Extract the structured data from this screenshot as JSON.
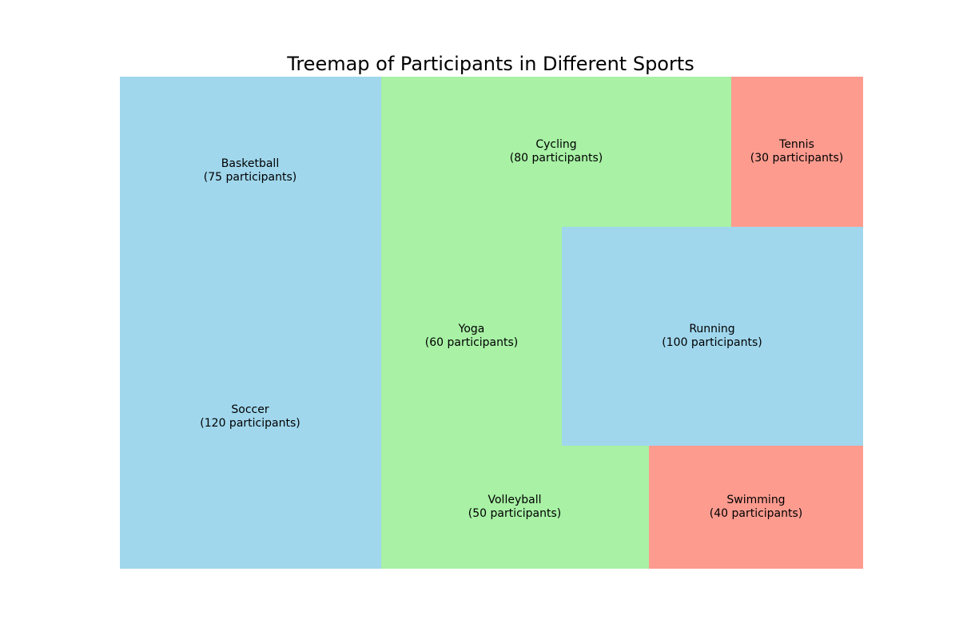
{
  "chart_data": {
    "type": "treemap",
    "title": "Treemap of Participants in Different Sports",
    "items": [
      {
        "name": "Soccer",
        "value": 120,
        "label": "(120 participants)",
        "color": "#a0d7ed"
      },
      {
        "name": "Basketball",
        "value": 75,
        "label": "(75 participants)",
        "color": "#a0d7ed"
      },
      {
        "name": "Cycling",
        "value": 80,
        "label": "(80 participants)",
        "color": "#a8f1a5"
      },
      {
        "name": "Tennis",
        "value": 30,
        "label": "(30 participants)",
        "color": "#fd9b8f"
      },
      {
        "name": "Yoga",
        "value": 60,
        "label": "(60 participants)",
        "color": "#a8f1a5"
      },
      {
        "name": "Running",
        "value": 100,
        "label": "(100 participants)",
        "color": "#a0d7ed"
      },
      {
        "name": "Volleyball",
        "value": 50,
        "label": "(50 participants)",
        "color": "#a8f1a5"
      },
      {
        "name": "Swimming",
        "value": 40,
        "label": "(40 participants)",
        "color": "#fd9b8f"
      }
    ],
    "colors": [
      "#a0d7ed",
      "#a8f1a5",
      "#fd9b8f"
    ],
    "legend": "none",
    "grid": false
  }
}
